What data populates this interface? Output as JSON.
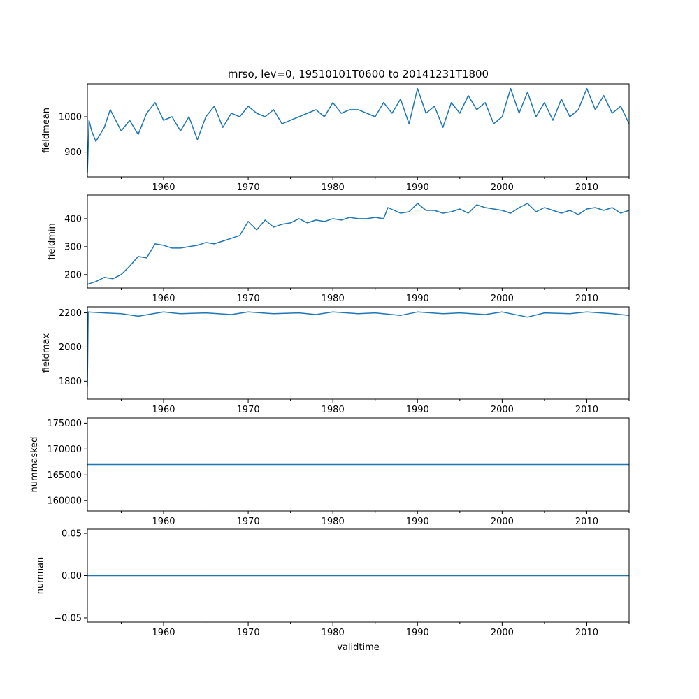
{
  "chart_data": {
    "type": "line",
    "title": "mrso, lev=0, 19510101T0600 to 20141231T1800",
    "xlabel": "validtime",
    "xlim": [
      1951.0,
      2015.0
    ],
    "x_ticks": [
      1960,
      1970,
      1980,
      1990,
      2000,
      2010
    ],
    "x_tick_labels": [
      "1960",
      "1970",
      "1980",
      "1990",
      "2000",
      "2010"
    ],
    "x_minor_ticks": [
      1955,
      1965,
      1975,
      1985,
      1995,
      2005,
      2015
    ],
    "color": "#1f77b4",
    "panels": [
      {
        "name": "fieldmean",
        "ylabel": "fieldmean",
        "ylim": [
          830,
          1093
        ],
        "y_ticks": [
          900,
          1000
        ],
        "y_tick_labels": [
          "900",
          "1000"
        ],
        "x": [
          1951.0,
          1951.2,
          1951.5,
          1952.0,
          1953.0,
          1953.7,
          1955.0,
          1956.0,
          1957.0,
          1958.0,
          1959.0,
          1960.0,
          1961.0,
          1962.0,
          1963.0,
          1964.0,
          1965.0,
          1966.0,
          1967.0,
          1968.0,
          1969.0,
          1970.0,
          1971.0,
          1972.0,
          1973.0,
          1974.0,
          1975.0,
          1976.0,
          1977.0,
          1978.0,
          1979.0,
          1980.0,
          1981.0,
          1982.0,
          1983.0,
          1984.0,
          1985.0,
          1986.0,
          1987.0,
          1988.0,
          1989.0,
          1990.0,
          1991.0,
          1992.0,
          1993.0,
          1994.0,
          1995.0,
          1996.0,
          1997.0,
          1998.0,
          1999.0,
          2000.0,
          2001.0,
          2002.0,
          2003.0,
          2004.0,
          2005.0,
          2006.0,
          2007.0,
          2008.0,
          2009.0,
          2010.0,
          2011.0,
          2012.0,
          2013.0,
          2014.0,
          2015.0
        ],
        "values": [
          840,
          990,
          960,
          930,
          970,
          1020,
          960,
          990,
          950,
          1010,
          1040,
          990,
          1000,
          960,
          1000,
          935,
          1000,
          1030,
          970,
          1010,
          1000,
          1030,
          1010,
          1000,
          1020,
          980,
          990,
          1000,
          1010,
          1020,
          1000,
          1040,
          1010,
          1020,
          1020,
          1010,
          1000,
          1040,
          1010,
          1050,
          980,
          1080,
          1010,
          1030,
          970,
          1040,
          1010,
          1060,
          1020,
          1040,
          980,
          1000,
          1080,
          1010,
          1070,
          1000,
          1040,
          990,
          1050,
          1000,
          1020,
          1080,
          1020,
          1060,
          1010,
          1030,
          980
        ]
      },
      {
        "name": "fieldmin",
        "ylabel": "fieldmin",
        "ylim": [
          152,
          485
        ],
        "y_ticks": [
          200,
          300,
          400
        ],
        "y_tick_labels": [
          "200",
          "300",
          "400"
        ],
        "x": [
          1951.0,
          1952.0,
          1953.0,
          1954.0,
          1955.0,
          1956.0,
          1957.0,
          1958.0,
          1959.0,
          1960.0,
          1961.0,
          1962.0,
          1963.0,
          1964.0,
          1965.0,
          1966.0,
          1967.0,
          1968.0,
          1969.0,
          1970.0,
          1971.0,
          1972.0,
          1973.0,
          1974.0,
          1975.0,
          1976.0,
          1977.0,
          1978.0,
          1979.0,
          1980.0,
          1981.0,
          1982.0,
          1983.0,
          1984.0,
          1985.0,
          1986.0,
          1986.5,
          1988.0,
          1989.0,
          1990.0,
          1991.0,
          1992.0,
          1993.0,
          1994.0,
          1995.0,
          1996.0,
          1997.0,
          1998.0,
          1999.0,
          2000.0,
          2001.0,
          2002.0,
          2003.0,
          2004.0,
          2005.0,
          2006.0,
          2007.0,
          2008.0,
          2009.0,
          2010.0,
          2011.0,
          2012.0,
          2013.0,
          2014.0,
          2015.0
        ],
        "values": [
          165,
          175,
          190,
          185,
          200,
          230,
          265,
          260,
          310,
          305,
          295,
          295,
          300,
          305,
          315,
          310,
          320,
          330,
          340,
          390,
          360,
          395,
          370,
          380,
          385,
          400,
          385,
          395,
          390,
          400,
          395,
          405,
          400,
          400,
          405,
          400,
          440,
          420,
          425,
          455,
          430,
          430,
          420,
          425,
          435,
          420,
          450,
          440,
          435,
          430,
          420,
          440,
          455,
          425,
          440,
          430,
          420,
          430,
          415,
          435,
          440,
          430,
          440,
          420,
          430
        ]
      },
      {
        "name": "fieldmax",
        "ylabel": "fieldmax",
        "ylim": [
          1695,
          2235
        ],
        "y_ticks": [
          1800,
          2000,
          2200
        ],
        "y_tick_labels": [
          "1800",
          "2000",
          "2200"
        ],
        "x": [
          1951.0,
          1951.1,
          1953.0,
          1955.0,
          1957.0,
          1960.0,
          1962.0,
          1965.0,
          1968.0,
          1970.0,
          1973.0,
          1976.0,
          1978.0,
          1980.0,
          1983.0,
          1985.0,
          1988.0,
          1990.0,
          1993.0,
          1995.0,
          1998.0,
          2000.0,
          2003.0,
          2005.0,
          2008.0,
          2010.0,
          2013.0,
          2015.0
        ],
        "values": [
          1770,
          2205,
          2200,
          2195,
          2180,
          2205,
          2195,
          2200,
          2190,
          2205,
          2195,
          2200,
          2190,
          2205,
          2195,
          2200,
          2185,
          2205,
          2195,
          2200,
          2190,
          2205,
          2175,
          2200,
          2195,
          2205,
          2195,
          2185
        ]
      },
      {
        "name": "nummasked",
        "ylabel": "nummasked",
        "ylim": [
          158000,
          176000
        ],
        "y_ticks": [
          160000,
          165000,
          170000,
          175000
        ],
        "y_tick_labels": [
          "160000",
          "165000",
          "170000",
          "175000"
        ],
        "x": [
          1951.0,
          2015.0
        ],
        "values": [
          167000,
          167000
        ]
      },
      {
        "name": "numnan",
        "ylabel": "numnan",
        "ylim": [
          -0.055,
          0.055
        ],
        "y_ticks": [
          -0.05,
          0.0,
          0.05
        ],
        "y_tick_labels": [
          "−0.05",
          "0.00",
          "0.05"
        ],
        "x": [
          1951.0,
          2015.0
        ],
        "values": [
          0.0,
          0.0
        ]
      }
    ]
  }
}
